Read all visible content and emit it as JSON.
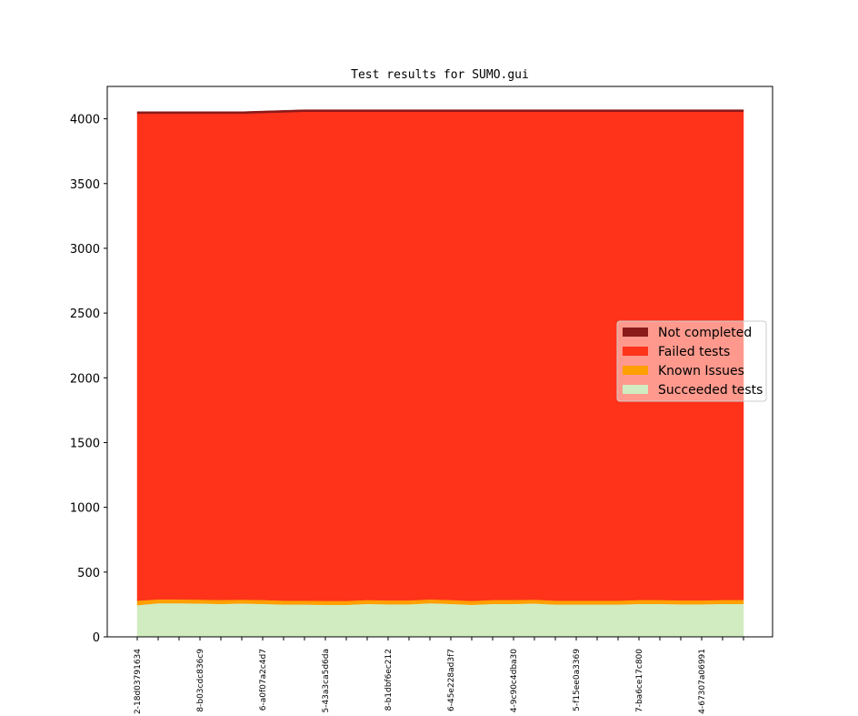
{
  "chart_data": {
    "type": "area",
    "title": "Test results for SUMO.gui",
    "xlabel": "",
    "ylabel": "",
    "ylim": [
      0,
      4250
    ],
    "yticks": [
      0,
      500,
      1000,
      1500,
      2000,
      2500,
      3000,
      3500,
      4000
    ],
    "stacked": true,
    "grid": false,
    "legend_position": "center-right",
    "x_count": 30,
    "xtick_labels": [
      {
        "index": 0,
        "label": "2-18d03791634"
      },
      {
        "index": 3,
        "label": "8-b03cdc836c9"
      },
      {
        "index": 6,
        "label": "6-a0f07a2c4d7"
      },
      {
        "index": 9,
        "label": "5-43a3ca5d6da"
      },
      {
        "index": 12,
        "label": "8-b1dbf6ec212"
      },
      {
        "index": 15,
        "label": "6-45e228ad3f7"
      },
      {
        "index": 18,
        "label": "4-9c90c4dba30"
      },
      {
        "index": 21,
        "label": "5-f15ee0a3369"
      },
      {
        "index": 24,
        "label": "7-ba6ce17c800"
      },
      {
        "index": 27,
        "label": "4-67307a06991"
      }
    ],
    "series": [
      {
        "name": "Succeeded tests",
        "color": "#d0ecc0",
        "values": [
          245,
          260,
          260,
          258,
          255,
          258,
          255,
          250,
          250,
          248,
          248,
          255,
          252,
          252,
          260,
          255,
          248,
          255,
          255,
          258,
          250,
          250,
          250,
          250,
          255,
          255,
          252,
          252,
          255,
          255
        ]
      },
      {
        "name": "Known Issues",
        "color": "#ff9f00",
        "values": [
          35,
          30,
          30,
          30,
          30,
          30,
          30,
          30,
          30,
          30,
          30,
          30,
          30,
          30,
          30,
          30,
          30,
          30,
          30,
          30,
          30,
          30,
          30,
          30,
          30,
          30,
          30,
          30,
          30,
          30
        ]
      },
      {
        "name": "Failed tests",
        "color": "#ff321a",
        "values": [
          3760,
          3750,
          3750,
          3752,
          3755,
          3752,
          3760,
          3770,
          3775,
          3777,
          3777,
          3770,
          3773,
          3773,
          3765,
          3770,
          3777,
          3770,
          3770,
          3767,
          3775,
          3775,
          3775,
          3775,
          3770,
          3770,
          3773,
          3773,
          3770,
          3770
        ]
      },
      {
        "name": "Not completed",
        "color": "#8b1a1a",
        "values": [
          15,
          15,
          15,
          15,
          15,
          15,
          15,
          15,
          15,
          15,
          15,
          15,
          15,
          15,
          15,
          15,
          15,
          15,
          15,
          15,
          15,
          15,
          15,
          15,
          15,
          15,
          15,
          15,
          15,
          15
        ]
      }
    ],
    "legend_order": [
      "Not completed",
      "Failed tests",
      "Known Issues",
      "Succeeded tests"
    ]
  }
}
